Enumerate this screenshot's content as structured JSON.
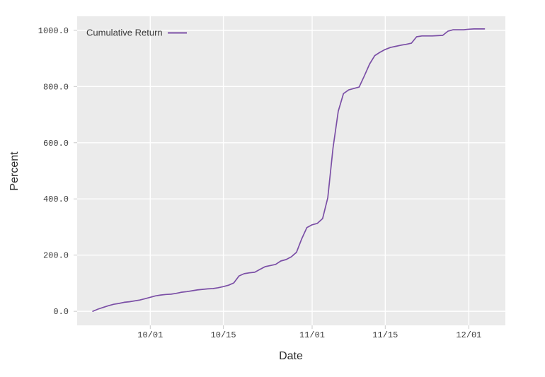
{
  "colors": {
    "figure_background": "#ffffff",
    "panel": "#ebebeb",
    "grid": "#ffffff",
    "tick": "#c9c9c9",
    "tick_text": "#3d3d3d",
    "axis_title_text": "#2b2b2b",
    "line": "#7b4fa6"
  },
  "chart_data": {
    "type": "line",
    "title": "",
    "xlabel": "Date",
    "ylabel": "Percent",
    "x_tick_labels": [
      "10/01",
      "10/15",
      "11/01",
      "11/15",
      "12/01"
    ],
    "y_tick_labels": [
      "0.0",
      "200.0",
      "400.0",
      "600.0",
      "800.0",
      "1000.0"
    ],
    "y_tick_values": [
      0,
      200,
      400,
      600,
      800,
      1000
    ],
    "x_range": [
      "09/17",
      "12/08"
    ],
    "y_range": [
      -50,
      1050
    ],
    "grid": "major white gridlines on light gray panel",
    "legend_position": "top-left-inside",
    "series": [
      {
        "name": "Cumulative Return",
        "color": "#7b4fa6",
        "points": [
          [
            "09/20",
            0
          ],
          [
            "09/21",
            8
          ],
          [
            "09/22",
            14
          ],
          [
            "09/23",
            20
          ],
          [
            "09/24",
            25
          ],
          [
            "09/25",
            28
          ],
          [
            "09/26",
            32
          ],
          [
            "09/27",
            34
          ],
          [
            "09/28",
            37
          ],
          [
            "09/29",
            40
          ],
          [
            "09/30",
            45
          ],
          [
            "10/01",
            50
          ],
          [
            "10/02",
            55
          ],
          [
            "10/03",
            58
          ],
          [
            "10/04",
            60
          ],
          [
            "10/05",
            61
          ],
          [
            "10/06",
            64
          ],
          [
            "10/07",
            68
          ],
          [
            "10/08",
            70
          ],
          [
            "10/09",
            73
          ],
          [
            "10/10",
            76
          ],
          [
            "10/11",
            78
          ],
          [
            "10/12",
            80
          ],
          [
            "10/13",
            81
          ],
          [
            "10/14",
            84
          ],
          [
            "10/15",
            88
          ],
          [
            "10/16",
            93
          ],
          [
            "10/17",
            101
          ],
          [
            "10/18",
            126
          ],
          [
            "10/19",
            134
          ],
          [
            "10/20",
            137
          ],
          [
            "10/21",
            139
          ],
          [
            "10/22",
            149
          ],
          [
            "10/23",
            159
          ],
          [
            "10/24",
            163
          ],
          [
            "10/25",
            167
          ],
          [
            "10/26",
            179
          ],
          [
            "10/27",
            184
          ],
          [
            "10/28",
            194
          ],
          [
            "10/29",
            210
          ],
          [
            "10/30",
            258
          ],
          [
            "10/31",
            298
          ],
          [
            "11/01",
            308
          ],
          [
            "11/02",
            313
          ],
          [
            "11/03",
            330
          ],
          [
            "11/04",
            404
          ],
          [
            "11/05",
            581
          ],
          [
            "11/06",
            712
          ],
          [
            "11/07",
            775
          ],
          [
            "11/08",
            788
          ],
          [
            "11/09",
            793
          ],
          [
            "11/10",
            798
          ],
          [
            "11/11",
            838
          ],
          [
            "11/12",
            880
          ],
          [
            "11/13",
            910
          ],
          [
            "11/14",
            922
          ],
          [
            "11/15",
            932
          ],
          [
            "11/16",
            939
          ],
          [
            "11/17",
            943
          ],
          [
            "11/18",
            947
          ],
          [
            "11/19",
            950
          ],
          [
            "11/20",
            954
          ],
          [
            "11/21",
            977
          ],
          [
            "11/22",
            980
          ],
          [
            "11/23",
            980
          ],
          [
            "11/24",
            980
          ],
          [
            "11/25",
            981
          ],
          [
            "11/26",
            982
          ],
          [
            "11/27",
            997
          ],
          [
            "11/28",
            1002
          ],
          [
            "11/29",
            1002
          ],
          [
            "11/30",
            1002
          ],
          [
            "12/01",
            1004
          ],
          [
            "12/02",
            1005
          ],
          [
            "12/03",
            1005
          ],
          [
            "12/04",
            1005
          ]
        ]
      }
    ]
  }
}
